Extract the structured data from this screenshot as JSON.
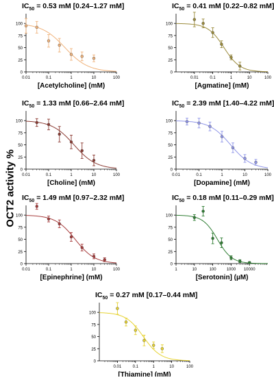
{
  "figure": {
    "y_axis_label": "OCT2 activity %"
  },
  "chart_data": [
    {
      "type": "scatter",
      "title": "IC50 = 0.53 mM [0.24–1.27 mM]",
      "title_parts": {
        "prefix": "IC",
        "sub": "50",
        "rest": " = 0.53 mM [0.24–1.27 mM]"
      },
      "xlabel": "[Acetylcholine] (mM)",
      "ylabel": "",
      "x_scale": "log",
      "xlim": [
        0.01,
        100
      ],
      "ylim": [
        0,
        120
      ],
      "x_ticks": [
        "0.01",
        "0.1",
        "1",
        "10",
        "100"
      ],
      "y_ticks": [
        0,
        25,
        50,
        75,
        100
      ],
      "color": "#f0b27a",
      "ic50": 0.53,
      "hill": 0.85,
      "top": 100,
      "bottom": 0,
      "series": [
        {
          "x": [
            0.01,
            0.03,
            0.1,
            0.3,
            1,
            3,
            10
          ],
          "y": [
            95,
            92,
            64,
            55,
            36,
            32,
            28
          ],
          "err": [
            15,
            12,
            13,
            14,
            12,
            9,
            7
          ]
        }
      ]
    },
    {
      "type": "scatter",
      "title": "IC50 = 0.41 mM [0.22–0.82 mM]",
      "title_parts": {
        "prefix": "IC",
        "sub": "50",
        "rest": " = 0.41 mM [0.22–0.82 mM]"
      },
      "xlabel": "[Agmatine] (mM)",
      "ylabel": "",
      "x_scale": "log",
      "xlim": [
        0.001,
        100
      ],
      "ylim": [
        0,
        120
      ],
      "x_ticks": [
        "0.01",
        "0.1",
        "1",
        "10",
        "100"
      ],
      "y_ticks": [
        0,
        25,
        50,
        75,
        100
      ],
      "color": "#9a8a3a",
      "ic50": 0.41,
      "hill": 1.0,
      "top": 100,
      "bottom": 0,
      "series": [
        {
          "x": [
            0.01,
            0.03,
            0.1,
            0.3,
            1,
            3
          ],
          "y": [
            108,
            100,
            81,
            57,
            30,
            12
          ],
          "err": [
            15,
            9,
            10,
            7,
            5,
            8
          ]
        }
      ]
    },
    {
      "type": "scatter",
      "title": "IC50 = 1.33 mM [0.66–2.64 mM]",
      "title_parts": {
        "prefix": "IC",
        "sub": "50",
        "rest": " = 1.33 mM [0.66–2.64 mM]"
      },
      "xlabel": "[Choline] (mM)",
      "ylabel": "",
      "x_scale": "log",
      "xlim": [
        0.01,
        100
      ],
      "ylim": [
        0,
        120
      ],
      "x_ticks": [
        "0.01",
        "0.1",
        "1",
        "10",
        "100"
      ],
      "y_ticks": [
        0,
        25,
        50,
        75,
        100
      ],
      "color": "#8b3a32",
      "ic50": 1.33,
      "hill": 0.9,
      "top": 100,
      "bottom": 0,
      "series": [
        {
          "x": [
            0.03,
            0.1,
            0.3,
            1,
            3,
            10
          ],
          "y": [
            96,
            92,
            72,
            56,
            38,
            18
          ],
          "err": [
            8,
            11,
            16,
            14,
            16,
            11
          ]
        }
      ]
    },
    {
      "type": "scatter",
      "title": "IC50 = 2.39 mM [1.40–4.22 mM]",
      "title_parts": {
        "prefix": "IC",
        "sub": "50",
        "rest": " = 2.39 mM [1.40–4.22 mM]"
      },
      "xlabel": "[Dopamine] (mM)",
      "ylabel": "",
      "x_scale": "log",
      "xlim": [
        0.01,
        100
      ],
      "ylim": [
        0,
        120
      ],
      "x_ticks": [
        "0.01",
        "0.1",
        "1",
        "10",
        "100"
      ],
      "y_ticks": [
        0,
        25,
        50,
        75,
        100
      ],
      "color": "#8f95e8",
      "ic50": 2.39,
      "hill": 0.95,
      "top": 100,
      "bottom": 0,
      "series": [
        {
          "x": [
            0.03,
            0.1,
            0.3,
            1,
            3,
            10,
            30
          ],
          "y": [
            98,
            95,
            88,
            67,
            44,
            22,
            14
          ],
          "err": [
            7,
            10,
            9,
            11,
            10,
            8,
            6
          ]
        }
      ]
    },
    {
      "type": "scatter",
      "title": "IC50 = 1.49 mM [0.97–2.32 mM]",
      "title_parts": {
        "prefix": "IC",
        "sub": "50",
        "rest": " = 1.49 mM [0.97–2.32 mM]"
      },
      "xlabel": "[Epinephrine] (mM)",
      "ylabel": "",
      "x_scale": "log",
      "xlim": [
        0.01,
        100
      ],
      "ylim": [
        0,
        120
      ],
      "x_ticks": [
        "0.01",
        "0.1",
        "1",
        "10",
        "100"
      ],
      "y_ticks": [
        0,
        25,
        50,
        75,
        100
      ],
      "color": "#a63a3a",
      "ic50": 1.49,
      "hill": 1.0,
      "top": 100,
      "bottom": 0,
      "series": [
        {
          "x": [
            0.03,
            0.1,
            0.3,
            1,
            3,
            10,
            30
          ],
          "y": [
            118,
            92,
            82,
            55,
            33,
            15,
            8
          ],
          "err": [
            6,
            6,
            8,
            9,
            7,
            5,
            4
          ]
        }
      ]
    },
    {
      "type": "scatter",
      "title": "IC50 = 0.18 mM [0.11–0.29 mM]",
      "title_parts": {
        "prefix": "IC",
        "sub": "50",
        "rest": " = 0.18 mM [0.11–0.29 mM]"
      },
      "xlabel": "[Serotonin] (µM)",
      "ylabel": "",
      "x_scale": "log",
      "xlim": [
        1,
        100000
      ],
      "ylim": [
        0,
        120
      ],
      "x_ticks": [
        "1",
        "10",
        "100",
        "1000",
        "10000"
      ],
      "y_ticks": [
        0,
        25,
        50,
        75,
        100
      ],
      "color": "#2e7d32",
      "ic50": 180,
      "hill": 1.1,
      "top": 100,
      "bottom": 0,
      "series": [
        {
          "x": [
            10,
            30,
            100,
            300,
            1000,
            3000,
            10000
          ],
          "y": [
            95,
            108,
            52,
            43,
            12,
            5,
            2
          ],
          "err": [
            6,
            10,
            11,
            10,
            4,
            3,
            2
          ]
        }
      ]
    },
    {
      "type": "scatter",
      "title": "IC50 = 0.27 mM [0.17–0.44 mM]",
      "title_parts": {
        "prefix": "IC",
        "sub": "50",
        "rest": " = 0.27 mM [0.17–0.44 mM]"
      },
      "xlabel": "[Thiamine] (mM)",
      "ylabel": "",
      "x_scale": "log",
      "xlim": [
        0.001,
        100
      ],
      "ylim": [
        0,
        120
      ],
      "x_ticks": [
        "0.01",
        "0.1",
        "1",
        "10",
        "100"
      ],
      "y_ticks": [
        0,
        25,
        50,
        75,
        100
      ],
      "color": "#e6d230",
      "ic50": 0.27,
      "hill": 0.9,
      "top": 100,
      "bottom": 0,
      "series": [
        {
          "x": [
            0.01,
            0.03,
            0.1,
            0.3,
            1,
            3
          ],
          "y": [
            108,
            80,
            63,
            42,
            32,
            25
          ],
          "err": [
            12,
            8,
            9,
            11,
            7,
            8
          ]
        }
      ]
    }
  ]
}
